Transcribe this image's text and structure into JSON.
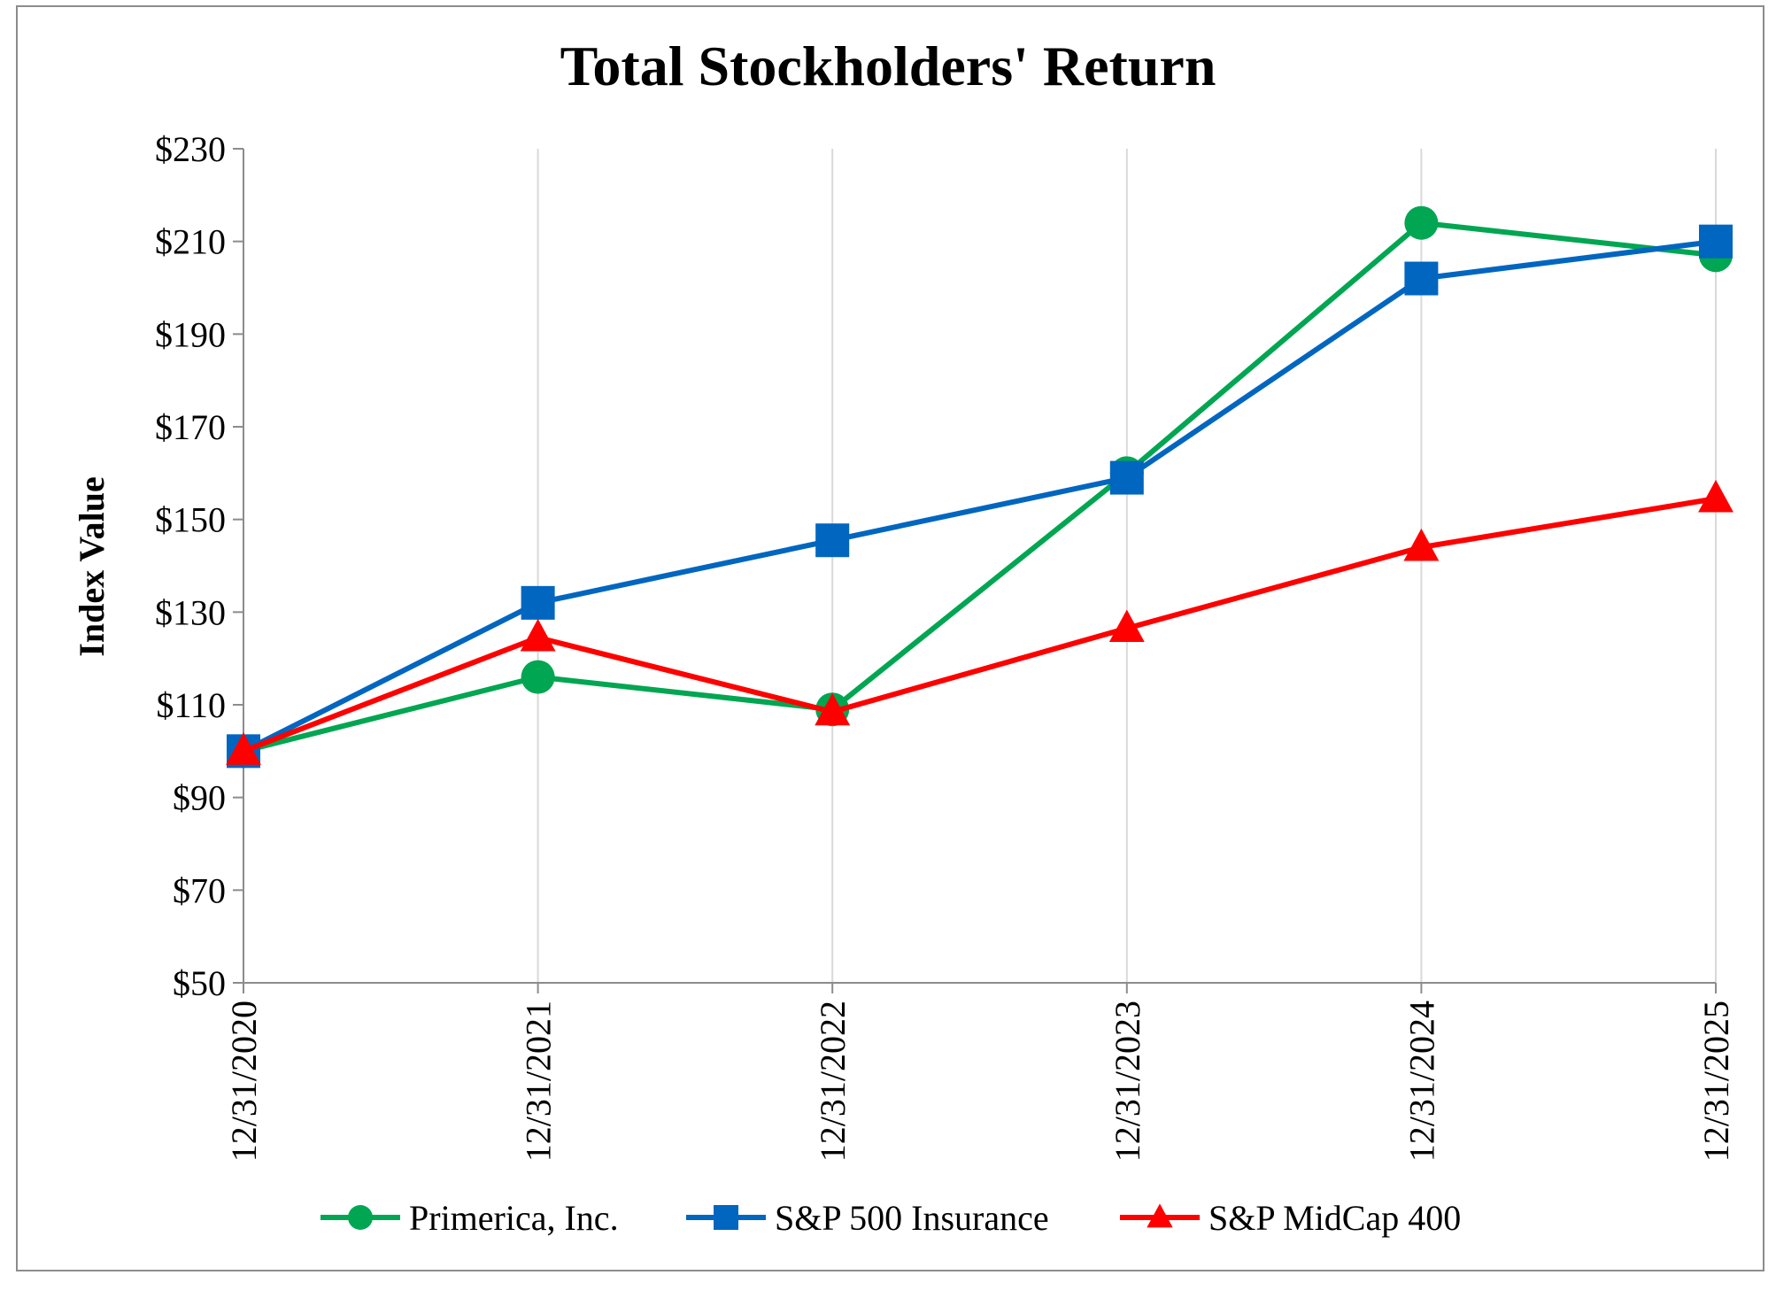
{
  "chart_data": {
    "type": "line",
    "title": "Total Stockholders' Return",
    "xlabel": "",
    "ylabel": "Index Value",
    "categories": [
      "12/31/2020",
      "12/31/2021",
      "12/31/2022",
      "12/31/2023",
      "12/31/2024",
      "12/31/2025"
    ],
    "ylim": [
      50,
      230
    ],
    "yticks": [
      50,
      70,
      90,
      110,
      130,
      150,
      170,
      190,
      210,
      230
    ],
    "ytick_labels": [
      "$50",
      "$70",
      "$90",
      "$110",
      "$130",
      "$150",
      "$170",
      "$190",
      "$210",
      "$230"
    ],
    "grid": "vertical",
    "legend_position": "bottom",
    "series": [
      {
        "name": "Primerica, Inc.",
        "marker": "circle",
        "color": "#00a651",
        "values": [
          100,
          116,
          109,
          160,
          214,
          207
        ]
      },
      {
        "name": "S&P 500 Insurance",
        "marker": "square",
        "color": "#0066c0",
        "values": [
          100,
          132,
          145.5,
          159,
          202,
          210
        ]
      },
      {
        "name": "S&P MidCap 400",
        "marker": "triangle",
        "color": "#ff0000",
        "values": [
          100,
          124.5,
          108.5,
          126.5,
          144,
          154.5
        ]
      }
    ]
  }
}
